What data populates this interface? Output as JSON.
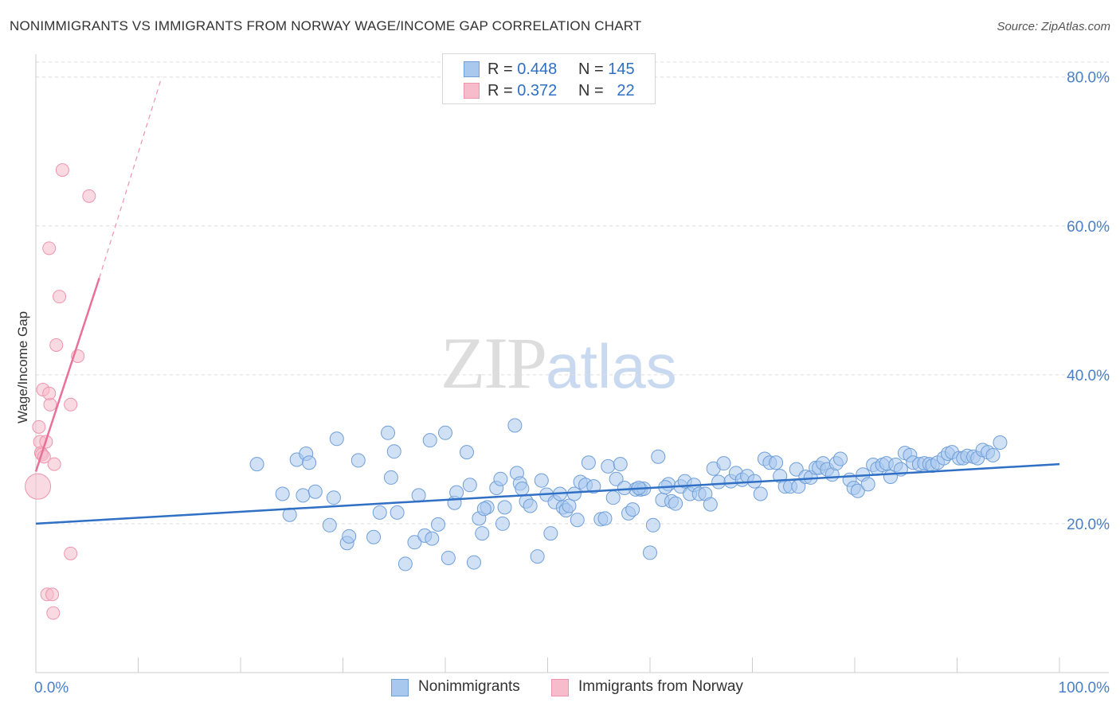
{
  "header": {
    "title": "NONIMMIGRANTS VS IMMIGRANTS FROM NORWAY WAGE/INCOME GAP CORRELATION CHART",
    "source": "Source: ZipAtlas.com"
  },
  "watermark": {
    "zip": "ZIP",
    "atlas": "atlas"
  },
  "legend_top": {
    "rows": [
      {
        "r_label": "R =",
        "r_value": "0.448",
        "n_label": "N =",
        "n_value": "145"
      },
      {
        "r_label": "R =",
        "r_value": "0.372",
        "n_label": "N =",
        "n_value": "22"
      }
    ]
  },
  "legend_bottom": {
    "items": [
      {
        "label": "Nonimmigrants"
      },
      {
        "label": "Immigrants from Norway"
      }
    ]
  },
  "colors": {
    "blue_fill": "#a9c8ee",
    "blue_stroke": "#6f9fd8",
    "blue_line": "#2f6fc4",
    "pink_fill": "#f6bccb",
    "pink_stroke": "#ee94ad",
    "pink_line": "#e8709a",
    "grid": "#dddddd",
    "axis": "#cccccc",
    "tick_label": "#4a80c8"
  },
  "chart_data": {
    "type": "scatter",
    "title": "NONIMMIGRANTS VS IMMIGRANTS FROM NORWAY WAGE/INCOME GAP CORRELATION CHART",
    "xlabel": "",
    "ylabel": "Wage/Income Gap",
    "xlim": [
      0,
      100
    ],
    "ylim": [
      0,
      82
    ],
    "x_tick_labels": [
      {
        "value": 0,
        "label": "0.0%"
      },
      {
        "value": 100,
        "label": "100.0%"
      }
    ],
    "y_tick_labels": [
      {
        "value": 20,
        "label": "20.0%"
      },
      {
        "value": 40,
        "label": "40.0%"
      },
      {
        "value": 60,
        "label": "60.0%"
      },
      {
        "value": 80,
        "label": "80.0%"
      }
    ],
    "x_minor_ticks": [
      0,
      10,
      20,
      30,
      40,
      50,
      60,
      70,
      80,
      90,
      100
    ],
    "grid": true,
    "legend_position": "bottom",
    "series": [
      {
        "name": "Nonimmigrants",
        "color": "#a9c8ee",
        "r": 0.448,
        "n": 145,
        "trend": {
          "x": [
            0,
            100
          ],
          "y": [
            20.0,
            28.0
          ]
        },
        "points": [
          [
            21.6,
            28.0
          ],
          [
            24.1,
            24.0
          ],
          [
            24.8,
            21.2
          ],
          [
            25.5,
            28.6
          ],
          [
            26.1,
            23.8
          ],
          [
            26.4,
            29.4
          ],
          [
            26.7,
            28.2
          ],
          [
            27.3,
            24.3
          ],
          [
            28.7,
            19.8
          ],
          [
            29.1,
            23.5
          ],
          [
            29.4,
            31.4
          ],
          [
            30.4,
            17.4
          ],
          [
            30.6,
            18.3
          ],
          [
            31.5,
            28.5
          ],
          [
            33.0,
            18.2
          ],
          [
            33.6,
            21.5
          ],
          [
            34.4,
            32.2
          ],
          [
            34.7,
            26.2
          ],
          [
            35.0,
            29.7
          ],
          [
            35.3,
            21.5
          ],
          [
            36.1,
            14.6
          ],
          [
            37.0,
            17.5
          ],
          [
            37.4,
            23.8
          ],
          [
            38.0,
            18.4
          ],
          [
            38.5,
            31.2
          ],
          [
            38.7,
            18.0
          ],
          [
            39.3,
            19.9
          ],
          [
            40.0,
            32.2
          ],
          [
            40.3,
            15.4
          ],
          [
            40.9,
            22.8
          ],
          [
            41.1,
            24.2
          ],
          [
            42.1,
            29.6
          ],
          [
            42.4,
            25.2
          ],
          [
            42.8,
            14.8
          ],
          [
            43.3,
            20.7
          ],
          [
            43.6,
            18.7
          ],
          [
            44.1,
            22.2
          ],
          [
            45.0,
            24.8
          ],
          [
            45.6,
            20.0
          ],
          [
            45.8,
            22.2
          ],
          [
            46.8,
            33.2
          ],
          [
            47.0,
            26.8
          ],
          [
            47.3,
            25.4
          ],
          [
            47.9,
            23.0
          ],
          [
            48.3,
            22.4
          ],
          [
            49.0,
            15.6
          ],
          [
            49.4,
            25.8
          ],
          [
            49.9,
            23.9
          ],
          [
            50.3,
            18.7
          ],
          [
            50.7,
            22.9
          ],
          [
            51.2,
            24.0
          ],
          [
            51.5,
            22.2
          ],
          [
            51.8,
            21.8
          ],
          [
            52.1,
            22.4
          ],
          [
            52.6,
            24.0
          ],
          [
            53.2,
            25.6
          ],
          [
            53.7,
            25.2
          ],
          [
            54.0,
            28.2
          ],
          [
            54.5,
            25.0
          ],
          [
            55.2,
            20.6
          ],
          [
            55.6,
            20.7
          ],
          [
            55.9,
            27.7
          ],
          [
            56.4,
            23.5
          ],
          [
            56.7,
            26.0
          ],
          [
            57.1,
            28.0
          ],
          [
            57.9,
            21.4
          ],
          [
            58.3,
            21.9
          ],
          [
            58.6,
            24.6
          ],
          [
            59.1,
            24.6
          ],
          [
            59.4,
            24.7
          ],
          [
            60.0,
            16.1
          ],
          [
            60.3,
            19.8
          ],
          [
            60.8,
            29.0
          ],
          [
            61.2,
            23.2
          ],
          [
            61.8,
            25.3
          ],
          [
            62.1,
            23.0
          ],
          [
            62.5,
            22.7
          ],
          [
            63.0,
            25.0
          ],
          [
            63.4,
            25.7
          ],
          [
            63.9,
            24.0
          ],
          [
            64.3,
            25.2
          ],
          [
            64.8,
            24.0
          ],
          [
            65.4,
            24.0
          ],
          [
            65.9,
            22.6
          ],
          [
            66.2,
            27.4
          ],
          [
            66.7,
            25.6
          ],
          [
            67.2,
            28.1
          ],
          [
            67.9,
            25.7
          ],
          [
            68.4,
            26.8
          ],
          [
            69.0,
            25.9
          ],
          [
            69.5,
            26.4
          ],
          [
            70.2,
            25.7
          ],
          [
            70.8,
            24.0
          ],
          [
            71.2,
            28.7
          ],
          [
            71.7,
            28.2
          ],
          [
            72.3,
            28.2
          ],
          [
            72.7,
            26.4
          ],
          [
            73.2,
            25.0
          ],
          [
            73.7,
            25.0
          ],
          [
            74.3,
            27.3
          ],
          [
            74.5,
            25.0
          ],
          [
            75.2,
            26.3
          ],
          [
            75.7,
            26.2
          ],
          [
            76.2,
            27.5
          ],
          [
            76.5,
            27.5
          ],
          [
            76.9,
            28.1
          ],
          [
            77.3,
            27.3
          ],
          [
            77.8,
            26.6
          ],
          [
            78.2,
            28.1
          ],
          [
            78.6,
            28.7
          ],
          [
            79.5,
            25.9
          ],
          [
            79.9,
            24.8
          ],
          [
            80.3,
            24.4
          ],
          [
            80.8,
            26.6
          ],
          [
            81.3,
            25.3
          ],
          [
            81.8,
            27.9
          ],
          [
            82.2,
            27.4
          ],
          [
            82.7,
            27.9
          ],
          [
            83.1,
            28.1
          ],
          [
            83.5,
            26.3
          ],
          [
            84.0,
            27.9
          ],
          [
            84.5,
            27.3
          ],
          [
            84.9,
            29.5
          ],
          [
            85.4,
            29.2
          ],
          [
            85.7,
            28.2
          ],
          [
            86.3,
            28.0
          ],
          [
            86.8,
            28.1
          ],
          [
            87.3,
            28.0
          ],
          [
            87.6,
            27.8
          ],
          [
            88.1,
            28.2
          ],
          [
            88.7,
            28.8
          ],
          [
            89.1,
            29.4
          ],
          [
            89.5,
            29.6
          ],
          [
            90.2,
            28.8
          ],
          [
            90.6,
            28.8
          ],
          [
            91.0,
            29.1
          ],
          [
            91.6,
            29.0
          ],
          [
            92.0,
            28.8
          ],
          [
            92.5,
            29.9
          ],
          [
            93.0,
            29.6
          ],
          [
            93.5,
            29.2
          ],
          [
            94.2,
            30.9
          ],
          [
            43.8,
            22.0
          ],
          [
            45.4,
            26.0
          ],
          [
            47.5,
            24.7
          ],
          [
            52.9,
            20.5
          ],
          [
            57.5,
            24.8
          ],
          [
            61.5,
            24.9
          ],
          [
            58.9,
            24.8
          ]
        ]
      },
      {
        "name": "Immigrants from Norway",
        "color": "#f6bccb",
        "r": 0.372,
        "n": 22,
        "trend": {
          "x": [
            0,
            6.2
          ],
          "y": [
            27.0,
            53.0
          ]
        },
        "trend_dashed_extension": {
          "x": [
            6.2,
            12.3
          ],
          "y": [
            53.0,
            80.0
          ]
        },
        "points": [
          [
            0.2,
            25.0
          ],
          [
            0.3,
            33.0
          ],
          [
            0.4,
            31.0
          ],
          [
            0.5,
            29.5
          ],
          [
            0.6,
            29.3
          ],
          [
            0.7,
            38.0
          ],
          [
            0.8,
            29.0
          ],
          [
            1.0,
            31.0
          ],
          [
            1.1,
            10.5
          ],
          [
            1.3,
            57.0
          ],
          [
            1.4,
            36.0
          ],
          [
            1.6,
            10.5
          ],
          [
            1.7,
            8.0
          ],
          [
            1.8,
            28.0
          ],
          [
            2.0,
            44.0
          ],
          [
            2.3,
            50.5
          ],
          [
            2.6,
            67.5
          ],
          [
            3.4,
            36.0
          ],
          [
            3.4,
            16.0
          ],
          [
            4.1,
            42.5
          ],
          [
            5.2,
            64.0
          ],
          [
            1.3,
            37.5
          ]
        ]
      }
    ]
  }
}
